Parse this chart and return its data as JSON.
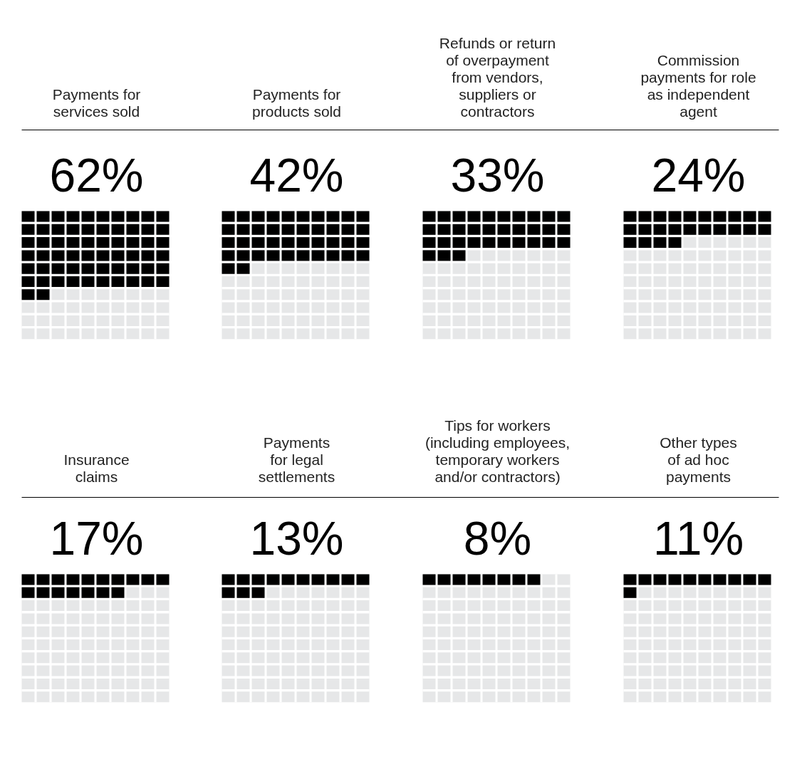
{
  "chart_data": {
    "type": "other",
    "categories": [
      "Payments for\nservices sold",
      "Payments for\nproducts sold",
      "Refunds or return\nof overpayment\nfrom vendors,\nsuppliers or\ncontractors",
      "Commission\npayments for role\nas independent\nagent",
      "Insurance\nclaims",
      "Payments\nfor legal\nsettlements",
      "Tips for workers\n(including employees,\ntemporary workers\nand/or contractors)",
      "Other types\nof ad hoc\npayments"
    ],
    "values": [
      62,
      42,
      33,
      24,
      17,
      13,
      8,
      11
    ],
    "value_labels": [
      "62%",
      "42%",
      "33%",
      "24%",
      "17%",
      "13%",
      "8%",
      "11%"
    ],
    "color": "#000000"
  }
}
